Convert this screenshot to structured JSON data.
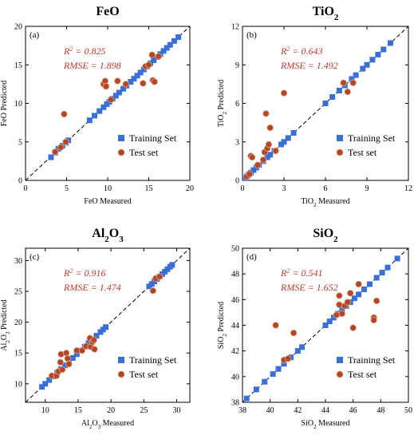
{
  "figure": {
    "colors": {
      "training": "#3a6fd8",
      "test": "#b5442e",
      "test_edge": "#d8b07a",
      "stats": "#c0392b",
      "diagonal": "#000000"
    }
  },
  "chart_data": [
    {
      "type": "scatter",
      "panel_label": "(a)",
      "title": "FeO",
      "title_sub": "",
      "title_tail": "",
      "xlabel": "FeO Measured",
      "ylabel": "FeO Predicted",
      "xlabel_sub": "",
      "xlabel_tail": "",
      "ylabel_sub": "",
      "ylabel_tail": "",
      "xlim": [
        0,
        20
      ],
      "ylim": [
        0,
        20
      ],
      "xticks": [
        0,
        5,
        10,
        15,
        20
      ],
      "yticks": [
        0,
        5,
        10,
        15,
        20
      ],
      "r2_label": "R",
      "r2_value": "= 0.825",
      "rmse_text": "RMSE = 1.898",
      "series": [
        {
          "name": "Training Set",
          "marker": "square",
          "points": [
            [
              3.1,
              3.0
            ],
            [
              3.6,
              3.6
            ],
            [
              4.0,
              4.1
            ],
            [
              4.5,
              4.5
            ],
            [
              4.9,
              4.9
            ],
            [
              5.2,
              5.2
            ],
            [
              7.8,
              7.8
            ],
            [
              8.4,
              8.4
            ],
            [
              9.0,
              9.0
            ],
            [
              9.5,
              9.5
            ],
            [
              9.9,
              9.9
            ],
            [
              10.2,
              10.2
            ],
            [
              10.6,
              10.6
            ],
            [
              11.0,
              11.0
            ],
            [
              11.4,
              11.4
            ],
            [
              11.9,
              11.9
            ],
            [
              12.3,
              12.3
            ],
            [
              12.8,
              12.8
            ],
            [
              13.2,
              13.2
            ],
            [
              13.6,
              13.6
            ],
            [
              14.0,
              14.0
            ],
            [
              14.4,
              14.4
            ],
            [
              14.8,
              14.8
            ],
            [
              15.2,
              15.2
            ],
            [
              15.6,
              15.6
            ],
            [
              16.0,
              16.0
            ],
            [
              16.4,
              16.4
            ],
            [
              16.8,
              16.8
            ],
            [
              17.2,
              17.2
            ],
            [
              17.6,
              17.6
            ],
            [
              18.1,
              18.1
            ],
            [
              18.6,
              18.6
            ]
          ]
        },
        {
          "name": "Test set",
          "marker": "circle",
          "points": [
            [
              3.6,
              3.7
            ],
            [
              4.3,
              4.3
            ],
            [
              4.7,
              8.6
            ],
            [
              4.9,
              5.0
            ],
            [
              9.5,
              12.5
            ],
            [
              9.7,
              12.9
            ],
            [
              9.8,
              12.2
            ],
            [
              10.4,
              10.5
            ],
            [
              11.2,
              12.9
            ],
            [
              12.2,
              12.5
            ],
            [
              14.3,
              12.6
            ],
            [
              14.6,
              14.8
            ],
            [
              15.0,
              15.0
            ],
            [
              15.4,
              16.3
            ],
            [
              15.5,
              13.0
            ],
            [
              15.7,
              12.8
            ],
            [
              16.2,
              16.1
            ]
          ]
        }
      ]
    },
    {
      "type": "scatter",
      "panel_label": "(b)",
      "title": "TiO",
      "title_sub": "2",
      "title_tail": "",
      "xlabel": "TiO",
      "ylabel": "TiO",
      "xlabel_sub": "2",
      "xlabel_tail": " Measured",
      "ylabel_sub": "2",
      "ylabel_tail": " Predicted",
      "xlim": [
        0,
        12
      ],
      "ylim": [
        0,
        12
      ],
      "xticks": [
        0,
        3,
        6,
        9,
        12
      ],
      "yticks": [
        0,
        3,
        6,
        9,
        12
      ],
      "r2_label": "R",
      "r2_value": "= 0.643",
      "rmse_text": "RMSE = 1.492",
      "series": [
        {
          "name": "Training Set",
          "marker": "square",
          "points": [
            [
              0.2,
              0.2
            ],
            [
              0.3,
              0.3
            ],
            [
              0.4,
              0.4
            ],
            [
              0.5,
              0.5
            ],
            [
              0.6,
              0.6
            ],
            [
              0.8,
              0.8
            ],
            [
              1.0,
              1.0
            ],
            [
              1.2,
              1.2
            ],
            [
              1.5,
              1.5
            ],
            [
              1.8,
              1.8
            ],
            [
              2.0,
              2.0
            ],
            [
              2.3,
              2.3
            ],
            [
              2.8,
              2.8
            ],
            [
              3.0,
              3.0
            ],
            [
              3.3,
              3.3
            ],
            [
              3.7,
              3.7
            ],
            [
              6.0,
              6.0
            ],
            [
              6.5,
              6.5
            ],
            [
              7.0,
              7.0
            ],
            [
              7.4,
              7.4
            ],
            [
              7.9,
              7.9
            ],
            [
              8.2,
              8.2
            ],
            [
              8.7,
              8.7
            ],
            [
              9.0,
              9.0
            ],
            [
              9.4,
              9.4
            ],
            [
              9.8,
              9.8
            ],
            [
              10.2,
              10.2
            ],
            [
              10.7,
              10.7
            ]
          ]
        },
        {
          "name": "Test set",
          "marker": "circle",
          "points": [
            [
              0.3,
              0.3
            ],
            [
              0.5,
              0.5
            ],
            [
              0.6,
              1.9
            ],
            [
              0.7,
              1.8
            ],
            [
              1.1,
              1.2
            ],
            [
              1.5,
              1.6
            ],
            [
              1.6,
              2.2
            ],
            [
              1.7,
              5.2
            ],
            [
              1.8,
              2.5
            ],
            [
              1.9,
              2.8
            ],
            [
              2.0,
              4.1
            ],
            [
              2.4,
              2.3
            ],
            [
              3.0,
              6.8
            ],
            [
              7.3,
              7.6
            ],
            [
              7.6,
              6.9
            ],
            [
              8.0,
              7.6
            ]
          ]
        }
      ]
    },
    {
      "type": "scatter",
      "panel_label": "(c)",
      "title": "Al",
      "title_sub": "2",
      "title_tail": "O",
      "title_sub2": "3",
      "xlabel": "Al",
      "ylabel": "Al",
      "xlabel_sub": "2",
      "xlabel_tail": "O",
      "xlabel_sub2": "3",
      "xlabel_tail2": " Measured",
      "ylabel_sub": "2",
      "ylabel_tail": "O",
      "ylabel_sub2": "3",
      "ylabel_tail2": " Predicted",
      "xlim": [
        7,
        32
      ],
      "ylim": [
        7,
        32
      ],
      "xticks": [
        10,
        15,
        20,
        25,
        30
      ],
      "yticks": [
        10,
        15,
        20,
        25,
        30
      ],
      "r2_label": "R",
      "r2_value": "= 0.916",
      "rmse_text": "RMSE = 1.474",
      "series": [
        {
          "name": "Training Set",
          "marker": "square",
          "points": [
            [
              9.5,
              9.5
            ],
            [
              10.0,
              10.0
            ],
            [
              10.6,
              10.6
            ],
            [
              11.2,
              11.2
            ],
            [
              11.8,
              11.8
            ],
            [
              12.4,
              12.4
            ],
            [
              13.0,
              13.0
            ],
            [
              13.6,
              13.6
            ],
            [
              14.2,
              14.2
            ],
            [
              14.8,
              14.8
            ],
            [
              15.4,
              15.4
            ],
            [
              16.0,
              16.0
            ],
            [
              16.6,
              16.6
            ],
            [
              17.2,
              17.2
            ],
            [
              17.8,
              17.8
            ],
            [
              18.4,
              18.4
            ],
            [
              18.8,
              18.8
            ],
            [
              19.2,
              19.2
            ],
            [
              25.8,
              25.8
            ],
            [
              26.2,
              26.2
            ],
            [
              26.6,
              26.6
            ],
            [
              27.0,
              27.0
            ],
            [
              27.4,
              27.4
            ],
            [
              27.8,
              27.8
            ],
            [
              28.2,
              28.2
            ],
            [
              28.6,
              28.6
            ],
            [
              29.0,
              29.0
            ],
            [
              29.3,
              29.3
            ]
          ]
        },
        {
          "name": "Test set",
          "marker": "circle",
          "points": [
            [
              11.0,
              11.3
            ],
            [
              11.7,
              11.3
            ],
            [
              12.0,
              12.0
            ],
            [
              12.3,
              13.5
            ],
            [
              12.4,
              14.8
            ],
            [
              12.6,
              12.3
            ],
            [
              13.2,
              15.0
            ],
            [
              13.4,
              14.1
            ],
            [
              13.6,
              13.2
            ],
            [
              14.8,
              15.4
            ],
            [
              15.6,
              15.4
            ],
            [
              16.2,
              16.1
            ],
            [
              16.8,
              17.4
            ],
            [
              16.9,
              16.0
            ],
            [
              17.2,
              16.8
            ],
            [
              17.4,
              17.1
            ],
            [
              17.5,
              15.6
            ],
            [
              26.4,
              25.1
            ],
            [
              26.8,
              27.1
            ],
            [
              27.4,
              27.4
            ]
          ]
        }
      ]
    },
    {
      "type": "scatter",
      "panel_label": "(d)",
      "title": "SiO",
      "title_sub": "2",
      "title_tail": "",
      "xlabel": "SiO",
      "ylabel": "SiO",
      "xlabel_sub": "2",
      "xlabel_tail": " Measured",
      "ylabel_sub": "2",
      "ylabel_tail": " Predicted",
      "xlim": [
        38,
        50
      ],
      "ylim": [
        38,
        50
      ],
      "xticks": [
        38,
        40,
        42,
        44,
        46,
        48,
        50
      ],
      "yticks": [
        38,
        40,
        42,
        44,
        46,
        48,
        50
      ],
      "r2_label": "R",
      "r2_value": "= 0.541",
      "rmse_text": "RMSE = 1.652",
      "series": [
        {
          "name": "Training Set",
          "marker": "square",
          "points": [
            [
              38.3,
              38.3
            ],
            [
              39.0,
              39.0
            ],
            [
              39.6,
              39.6
            ],
            [
              40.2,
              40.2
            ],
            [
              40.6,
              40.6
            ],
            [
              41.0,
              41.0
            ],
            [
              41.5,
              41.5
            ],
            [
              42.0,
              42.0
            ],
            [
              42.3,
              42.3
            ],
            [
              44.0,
              44.0
            ],
            [
              44.3,
              44.3
            ],
            [
              44.6,
              44.6
            ],
            [
              44.9,
              44.9
            ],
            [
              45.2,
              45.2
            ],
            [
              45.5,
              45.5
            ],
            [
              45.8,
              45.8
            ],
            [
              46.1,
              46.1
            ],
            [
              46.4,
              46.4
            ],
            [
              46.8,
              46.8
            ],
            [
              47.2,
              47.2
            ],
            [
              47.7,
              47.7
            ],
            [
              48.1,
              48.1
            ],
            [
              48.5,
              48.5
            ],
            [
              49.2,
              49.2
            ]
          ]
        },
        {
          "name": "Test set",
          "marker": "circle",
          "points": [
            [
              40.4,
              44.0
            ],
            [
              41.0,
              41.3
            ],
            [
              41.3,
              41.4
            ],
            [
              41.7,
              43.4
            ],
            [
              44.8,
              44.8
            ],
            [
              45.0,
              45.6
            ],
            [
              45.0,
              46.3
            ],
            [
              45.2,
              44.9
            ],
            [
              45.4,
              45.5
            ],
            [
              45.6,
              45.8
            ],
            [
              45.8,
              46.5
            ],
            [
              46.0,
              43.8
            ],
            [
              46.4,
              47.2
            ],
            [
              47.5,
              44.6
            ],
            [
              47.5,
              44.4
            ],
            [
              47.7,
              45.9
            ]
          ]
        }
      ]
    }
  ]
}
